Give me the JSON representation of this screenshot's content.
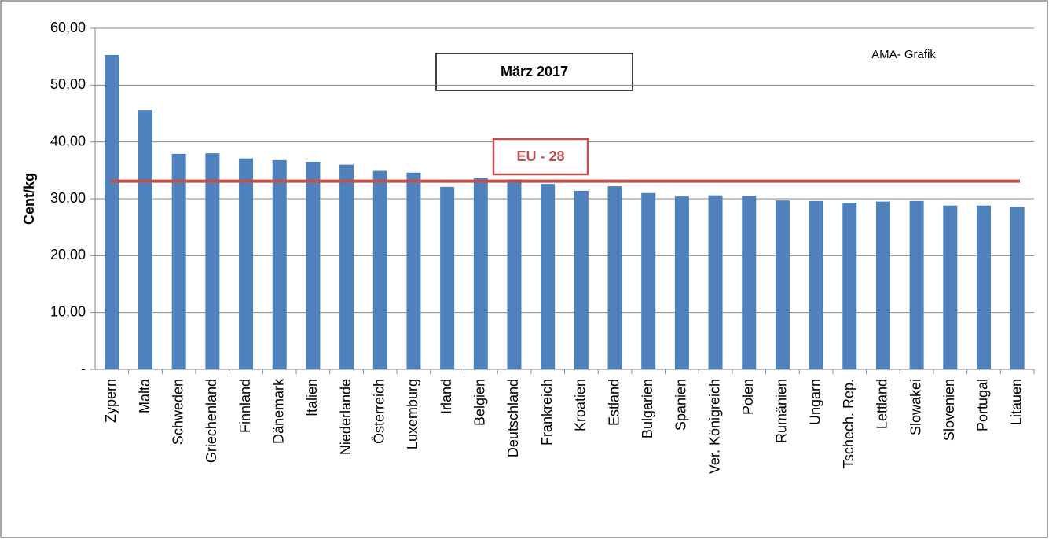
{
  "chart_data": {
    "type": "bar",
    "title": "März 2017",
    "annotation": "AMA- Grafik",
    "y_axis_label": "Cent/kg",
    "categories": [
      "Zypern",
      "Malta",
      "Schweden",
      "Griechenland",
      "Finnland",
      "Dänemark",
      "Italien",
      "Niederlande",
      "Österreich",
      "Luxemburg",
      "Irland",
      "Belgien",
      "Deutschland",
      "Frankreich",
      "Kroatien",
      "Estland",
      "Bulgarien",
      "Spanien",
      "Ver. Königreich",
      "Polen",
      "Rumänien",
      "Ungarn",
      "Tschech. Rep.",
      "Lettland",
      "Slowakei",
      "Slovenien",
      "Portugal",
      "Litauen"
    ],
    "values": [
      55.3,
      45.6,
      37.9,
      38.0,
      37.1,
      36.8,
      36.5,
      36.0,
      34.9,
      34.6,
      32.1,
      33.7,
      33.4,
      32.6,
      31.4,
      32.2,
      31.0,
      30.4,
      30.6,
      30.5,
      29.7,
      29.6,
      29.3,
      29.5,
      29.6,
      28.8,
      28.8,
      28.6
    ],
    "color": "#4f81bd",
    "reference_line": {
      "label": "EU - 28",
      "value": 33.1,
      "color": "#c0504d"
    },
    "ylim": [
      0,
      60
    ],
    "yticks": [
      {
        "value": 0,
        "label": "-"
      },
      {
        "value": 10,
        "label": "10,00"
      },
      {
        "value": 20,
        "label": "20,00"
      },
      {
        "value": 30,
        "label": "30,00"
      },
      {
        "value": 40,
        "label": "40,00"
      },
      {
        "value": 50,
        "label": "50,00"
      },
      {
        "value": 60,
        "label": "60,00"
      }
    ],
    "grid": true
  }
}
